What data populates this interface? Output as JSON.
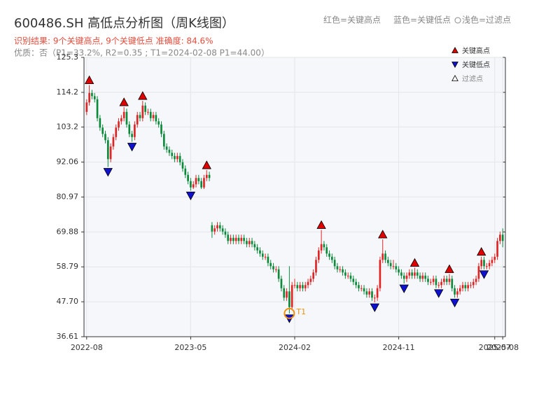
{
  "chart_data": {
    "type": "candlestick",
    "title": "600486.SH 高低点分析图（周K线图）",
    "subtitle": "识别结果: 9个关键高点, 9个关键低点  准确度: 84.6%",
    "note": "优质：否（P1=33.2%, R2=0.35 ; T1=2024-02-08 P1=44.00）",
    "header_legend": [
      "红色=关键高点",
      "蓝色=关键低点",
      "浅色=过滤点"
    ],
    "legend": {
      "position": "upper right",
      "entries": [
        "关键高点",
        "关键低点",
        "过滤点"
      ]
    },
    "up_color": "#e02424",
    "down_color": "#0b8a3a",
    "high_color": "#e00000",
    "low_color": "#1010d0",
    "annotation_color": "#f0900a",
    "grid": true,
    "xlim": [
      -1,
      157
    ],
    "xticks": [
      {
        "value": 0,
        "label": "2022-08"
      },
      {
        "value": 39,
        "label": "2023-05"
      },
      {
        "value": 78,
        "label": "2024-02"
      },
      {
        "value": 117,
        "label": "2024-11"
      },
      {
        "value": 153,
        "label": "2025-07"
      },
      {
        "value": 156,
        "label": "2025-08"
      }
    ],
    "ylim": [
      36.61,
      125.3
    ],
    "yticks": [
      36.61,
      {
        "value": 47.7,
        "label": "47.70"
      },
      58.79,
      69.88,
      80.97,
      92.06,
      103.2,
      114.2,
      125.3
    ],
    "candles": [
      [
        108,
        112,
        107,
        111
      ],
      [
        111,
        116.5,
        110,
        114
      ],
      [
        114,
        115,
        112,
        113
      ],
      [
        113,
        114,
        111,
        112
      ],
      [
        112,
        113,
        105,
        106
      ],
      [
        106,
        107,
        102,
        103
      ],
      [
        103,
        104,
        100,
        101
      ],
      [
        101,
        102,
        98,
        99
      ],
      [
        99,
        100,
        90.5,
        93
      ],
      [
        93,
        98,
        92,
        97
      ],
      [
        97,
        101,
        96,
        100
      ],
      [
        100,
        104,
        99,
        103
      ],
      [
        103,
        106,
        102,
        105
      ],
      [
        105,
        107,
        104,
        106
      ],
      [
        106,
        109.5,
        105,
        108
      ],
      [
        108,
        109,
        103,
        104
      ],
      [
        104,
        105,
        100,
        101
      ],
      [
        101,
        102,
        98.5,
        100
      ],
      [
        100,
        105,
        99,
        104
      ],
      [
        104,
        108,
        103,
        107
      ],
      [
        107,
        108,
        105,
        106
      ],
      [
        106,
        111.5,
        105,
        110
      ],
      [
        110,
        111,
        107,
        108
      ],
      [
        108,
        109,
        107,
        108
      ],
      [
        108,
        109,
        105,
        106
      ],
      [
        106,
        108,
        105,
        107
      ],
      [
        107,
        108,
        104,
        105
      ],
      [
        105,
        106,
        103,
        104
      ],
      [
        104,
        105,
        100,
        101
      ],
      [
        101,
        102,
        96,
        97
      ],
      [
        97,
        98,
        95,
        96
      ],
      [
        96,
        97,
        94,
        95
      ],
      [
        95,
        96,
        93,
        94
      ],
      [
        94,
        95,
        92,
        93
      ],
      [
        93,
        95,
        92,
        94
      ],
      [
        94,
        95,
        91,
        92
      ],
      [
        92,
        93,
        89,
        90
      ],
      [
        90,
        91,
        87,
        88
      ],
      [
        88,
        89,
        85,
        86
      ],
      [
        86,
        87,
        83,
        84
      ],
      [
        84,
        86,
        83.5,
        85
      ],
      [
        85,
        88,
        84,
        87
      ],
      [
        87,
        88,
        85,
        86
      ],
      [
        86,
        87,
        83.5,
        84
      ],
      [
        84,
        88,
        83.5,
        87
      ],
      [
        87,
        89.5,
        86,
        88
      ],
      [
        88,
        89,
        86,
        87
      ],
      [
        72,
        73,
        68,
        70
      ],
      [
        70,
        72,
        69,
        71
      ],
      [
        71,
        73,
        70,
        72
      ],
      [
        72,
        73,
        70,
        71
      ],
      [
        71,
        72,
        69,
        70
      ],
      [
        70,
        71,
        68,
        69
      ],
      [
        69,
        70,
        66,
        67
      ],
      [
        67,
        69,
        66,
        68
      ],
      [
        68,
        69,
        66,
        67
      ],
      [
        67,
        69,
        66,
        68
      ],
      [
        68,
        69,
        66,
        67
      ],
      [
        67,
        69,
        66,
        68
      ],
      [
        68,
        69,
        66,
        67
      ],
      [
        67,
        68,
        65,
        66
      ],
      [
        66,
        68,
        65,
        67
      ],
      [
        67,
        68,
        65,
        66
      ],
      [
        66,
        67,
        64,
        65
      ],
      [
        65,
        66,
        63,
        64
      ],
      [
        64,
        65,
        62,
        63
      ],
      [
        63,
        64,
        61,
        62
      ],
      [
        62,
        63,
        61,
        62
      ],
      [
        62,
        63,
        59,
        60
      ],
      [
        60,
        61,
        58,
        59
      ],
      [
        59,
        60,
        57,
        58
      ],
      [
        58,
        59,
        57,
        58
      ],
      [
        58,
        59,
        54,
        55
      ],
      [
        55,
        56,
        51,
        52
      ],
      [
        52,
        53,
        48,
        49
      ],
      [
        49,
        52,
        48,
        51
      ],
      [
        51,
        59,
        44,
        46
      ],
      [
        46,
        54,
        45,
        53
      ],
      [
        53,
        55,
        52,
        53
      ],
      [
        53,
        54,
        51,
        52
      ],
      [
        52,
        54,
        51,
        53
      ],
      [
        53,
        54,
        51,
        52
      ],
      [
        52,
        54,
        51,
        53
      ],
      [
        53,
        55,
        52,
        54
      ],
      [
        54,
        56,
        53,
        55
      ],
      [
        55,
        58,
        54,
        57
      ],
      [
        57,
        62,
        56,
        61
      ],
      [
        61,
        65,
        60,
        64
      ],
      [
        64,
        70.5,
        63,
        66
      ],
      [
        66,
        67,
        64,
        65
      ],
      [
        65,
        66,
        62,
        63
      ],
      [
        63,
        64,
        61,
        62
      ],
      [
        62,
        63,
        60,
        61
      ],
      [
        61,
        62,
        58,
        59
      ],
      [
        59,
        60,
        57,
        58
      ],
      [
        58,
        59,
        57,
        58
      ],
      [
        58,
        59,
        56,
        57
      ],
      [
        57,
        58,
        55,
        56
      ],
      [
        56,
        57,
        55,
        56
      ],
      [
        56,
        57,
        54,
        55
      ],
      [
        55,
        56,
        53,
        54
      ],
      [
        54,
        55,
        52,
        53
      ],
      [
        53,
        54,
        51,
        52
      ],
      [
        52,
        53,
        51,
        52
      ],
      [
        52,
        53,
        50,
        51
      ],
      [
        51,
        52,
        49,
        50
      ],
      [
        50,
        52,
        49,
        51
      ],
      [
        51,
        52,
        48,
        49
      ],
      [
        49,
        50,
        47.5,
        49
      ],
      [
        49,
        53,
        48,
        52
      ],
      [
        52,
        62,
        51,
        61
      ],
      [
        61,
        67.5,
        60,
        63
      ],
      [
        63,
        64,
        60,
        61
      ],
      [
        61,
        62,
        59,
        60
      ],
      [
        60,
        61,
        58,
        59
      ],
      [
        59,
        61,
        58,
        59
      ],
      [
        59,
        60,
        57,
        58
      ],
      [
        58,
        59,
        56,
        57
      ],
      [
        57,
        58,
        55,
        56
      ],
      [
        56,
        57,
        53.5,
        55
      ],
      [
        55,
        57,
        54,
        56
      ],
      [
        56,
        58,
        55,
        57
      ],
      [
        57,
        58,
        55,
        56
      ],
      [
        56,
        58.5,
        55,
        57
      ],
      [
        57,
        58,
        55,
        56
      ],
      [
        56,
        57,
        54,
        55
      ],
      [
        55,
        57,
        54,
        56
      ],
      [
        56,
        57,
        54,
        55
      ],
      [
        55,
        56,
        53,
        54
      ],
      [
        54,
        55,
        53,
        54
      ],
      [
        54,
        56,
        53,
        55
      ],
      [
        55,
        56,
        52,
        53
      ],
      [
        53,
        54,
        52,
        53
      ],
      [
        53,
        55,
        52,
        54
      ],
      [
        54,
        56,
        53,
        55
      ],
      [
        55,
        56,
        53,
        54
      ],
      [
        54,
        56.5,
        53,
        55
      ],
      [
        55,
        56,
        51,
        52
      ],
      [
        52,
        53,
        49,
        50
      ],
      [
        50,
        52,
        49,
        51
      ],
      [
        51,
        53,
        50,
        52
      ],
      [
        52,
        54,
        51,
        53
      ],
      [
        53,
        54,
        51,
        52
      ],
      [
        52,
        54,
        51,
        53
      ],
      [
        53,
        54,
        52,
        53
      ],
      [
        53,
        55,
        52,
        54
      ],
      [
        54,
        56,
        53,
        55
      ],
      [
        55,
        60,
        54,
        59
      ],
      [
        59,
        62,
        58,
        61
      ],
      [
        61,
        62,
        58,
        59
      ],
      [
        59,
        60,
        58,
        59
      ],
      [
        59,
        61,
        58,
        60
      ],
      [
        60,
        62,
        59,
        61
      ],
      [
        61,
        63,
        60,
        62
      ],
      [
        62,
        68,
        61,
        67
      ],
      [
        67,
        70,
        66,
        69
      ],
      [
        69,
        71,
        65,
        67
      ]
    ],
    "key_highs": {
      "x": [
        1,
        14,
        21,
        45,
        88,
        111,
        123,
        136,
        148
      ],
      "values": [
        116.5,
        109.5,
        111.5,
        89.5,
        70.5,
        67.5,
        58.5,
        56.5,
        62
      ]
    },
    "key_lows": {
      "x": [
        8,
        17,
        39,
        76,
        108,
        119,
        132,
        138,
        149
      ],
      "values": [
        90.5,
        98.5,
        83,
        44,
        47.5,
        53.5,
        52,
        49,
        58
      ]
    },
    "annotation": {
      "label": "T1",
      "x": 76,
      "value": 44
    }
  }
}
